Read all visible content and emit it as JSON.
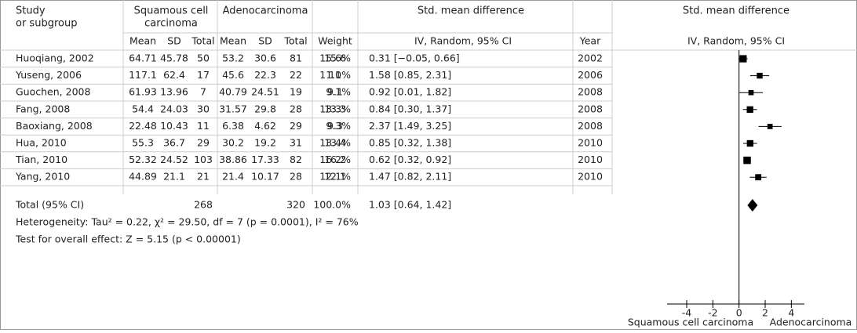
{
  "header": {
    "study": [
      "Study",
      "or subgroup"
    ],
    "group1": [
      "Squamous cell",
      "carcinoma"
    ],
    "group2": [
      "Adenocarcinoma"
    ],
    "effect_table": "Std. mean difference",
    "effect_plot": "Std. mean difference"
  },
  "subheader": {
    "mean1": "Mean",
    "sd1": "SD",
    "total1": "Total",
    "mean2": "Mean",
    "sd2": "SD",
    "total2": "Total",
    "weight": "Weight",
    "method_table": "IV, Random, 95% CI",
    "year": "Year",
    "method_plot": "IV, Random, 95% CI"
  },
  "studies": [
    {
      "name": "Huoqiang, 2002",
      "mean1": 64.71,
      "sd1": 45.78,
      "total1": 50,
      "mean2": 53.2,
      "sd2": 30.6,
      "total2": 81,
      "weight": 15.6,
      "weight_label": "15.6%",
      "ci": "0.31 [−0.05, 0.66]",
      "year": 2002,
      "estimate": 0.31,
      "lower": -0.05,
      "upper": 0.66
    },
    {
      "name": "Yuseng, 2006",
      "mean1": 117.1,
      "sd1": 62.4,
      "total1": 17,
      "mean2": 45.6,
      "sd2": 22.3,
      "total2": 22,
      "weight": 11.0,
      "weight_label": "11.0%",
      "ci": "1.58 [0.85, 2.31]",
      "year": 2006,
      "estimate": 1.58,
      "lower": 0.85,
      "upper": 2.31
    },
    {
      "name": "Guochen, 2008",
      "mean1": 61.93,
      "sd1": 13.96,
      "total1": 7,
      "mean2": 40.79,
      "sd2": 24.51,
      "total2": 19,
      "weight": 9.1,
      "weight_label": "9.1%",
      "ci": "0.92 [0.01, 1.82]",
      "year": 2008,
      "estimate": 0.92,
      "lower": 0.01,
      "upper": 1.82
    },
    {
      "name": "Fang, 2008",
      "mean1": 54.4,
      "sd1": 24.03,
      "total1": 30,
      "mean2": 31.57,
      "sd2": 29.8,
      "total2": 28,
      "weight": 13.3,
      "weight_label": "13.3%",
      "ci": "0.84 [0.30, 1.37]",
      "year": 2008,
      "estimate": 0.84,
      "lower": 0.3,
      "upper": 1.37
    },
    {
      "name": "Baoxiang, 2008",
      "mean1": 22.48,
      "sd1": 10.43,
      "total1": 11,
      "mean2": 6.38,
      "sd2": 4.62,
      "total2": 29,
      "weight": 9.3,
      "weight_label": "9.3%",
      "ci": "2.37 [1.49, 3.25]",
      "year": 2008,
      "estimate": 2.37,
      "lower": 1.49,
      "upper": 3.25
    },
    {
      "name": "Hua, 2010",
      "mean1": 55.3,
      "sd1": 36.7,
      "total1": 29,
      "mean2": 30.2,
      "sd2": 19.2,
      "total2": 31,
      "weight": 13.4,
      "weight_label": "13.4%",
      "ci": "0.85 [0.32, 1.38]",
      "year": 2010,
      "estimate": 0.85,
      "lower": 0.32,
      "upper": 1.38
    },
    {
      "name": "Tian, 2010",
      "mean1": 52.32,
      "sd1": 24.52,
      "total1": 103,
      "mean2": 38.86,
      "sd2": 17.33,
      "total2": 82,
      "weight": 16.2,
      "weight_label": "16.2%",
      "ci": "0.62 [0.32, 0.92]",
      "year": 2010,
      "estimate": 0.62,
      "lower": 0.32,
      "upper": 0.92
    },
    {
      "name": "Yang, 2010",
      "mean1": 44.89,
      "sd1": 21.1,
      "total1": 21,
      "mean2": 21.4,
      "sd2": 10.17,
      "total2": 28,
      "weight": 12.1,
      "weight_label": "12.1%",
      "ci": "1.47 [0.82, 2.11]",
      "year": 2010,
      "estimate": 1.47,
      "lower": 0.82,
      "upper": 2.11
    }
  ],
  "total": {
    "name": "Total (95% CI)",
    "total1": 268,
    "total2": 320,
    "weight": 100.0,
    "weight_label": "100.0%",
    "ci": "1.03 [0.64, 1.42]",
    "estimate": 1.03,
    "lower": 0.64,
    "upper": 1.42
  },
  "heterogeneity": "Heterogeneity: Tau² = 0.22, χ² = 29.50, df = 7 (p = 0.0001), I² = 76%",
  "overall_test": "Test for overall effect: Z = 5.15 (p < 0.00001)",
  "axis": {
    "xlim": [
      -5.5,
      5
    ],
    "xticks": [
      -4,
      -2,
      0,
      2,
      4
    ],
    "left_label": "Squamous cell carcinoma",
    "right_label": "Adenocarcinoma"
  }
}
